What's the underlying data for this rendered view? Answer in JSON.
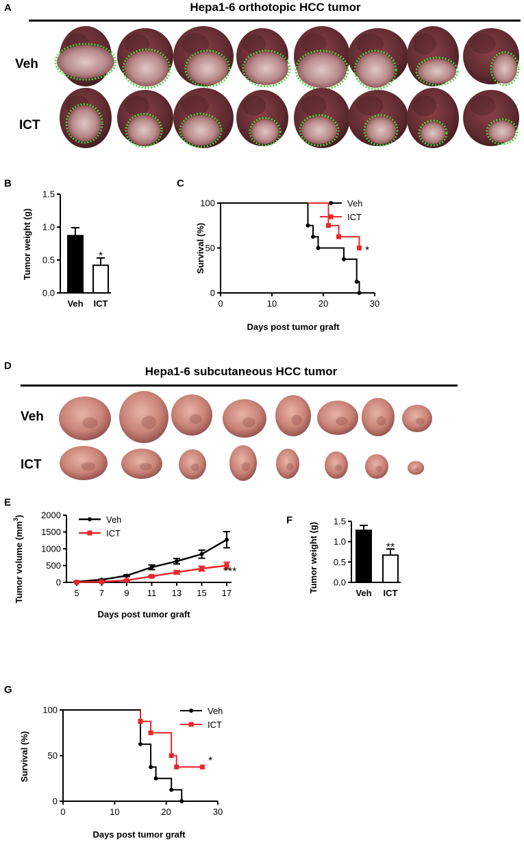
{
  "figure": {
    "panels": {
      "A": "A",
      "B": "B",
      "C": "C",
      "D": "D",
      "E": "E",
      "F": "F",
      "G": "G"
    },
    "panel_a": {
      "title": "Hepa1-6 orthotopic HCC tumor",
      "row1": "Veh",
      "row2": "ICT"
    },
    "panel_d": {
      "title": "Hepa1-6 subcutaneous HCC tumor",
      "row1": "Veh",
      "row2": "ICT"
    },
    "colors": {
      "veh": "#000000",
      "ict": "#e8262b",
      "outline": "#4bd43a",
      "liver": "#6a2f33",
      "liver_dark": "#4a1f24",
      "tumor": "#c8a8a6",
      "sc_tumor": "#c98b83",
      "sc_tumor_dark": "#8a4a48"
    }
  },
  "chart_data": [
    {
      "id": "B",
      "type": "bar",
      "title": "",
      "xlabel": "",
      "ylabel": "Tumor weight (g)",
      "categories": [
        "Veh",
        "ICT"
      ],
      "values": [
        0.87,
        0.42
      ],
      "errors": [
        0.12,
        0.11
      ],
      "fills": [
        "#000000",
        "#ffffff"
      ],
      "ylim": [
        0,
        1.5
      ],
      "yticks": [
        "0.0",
        "0.5",
        "1.0",
        "1.5"
      ],
      "annotations": [
        "*"
      ]
    },
    {
      "id": "C",
      "type": "line",
      "title": "",
      "xlabel": "Days post tumor graft",
      "ylabel": "Survival (%)",
      "xlim": [
        0,
        30
      ],
      "ylim": [
        0,
        100
      ],
      "xticks": [
        "0",
        "10",
        "20",
        "30"
      ],
      "yticks": [
        "0",
        "50",
        "100"
      ],
      "legend": [
        "Veh",
        "ICT"
      ],
      "legend_position": "top-right",
      "series": [
        {
          "name": "Veh",
          "color": "#000000",
          "step": [
            [
              0,
              100
            ],
            [
              17,
              100
            ],
            [
              17,
              75
            ],
            [
              18,
              75
            ],
            [
              18,
              62.5
            ],
            [
              19,
              62.5
            ],
            [
              19,
              50
            ],
            [
              24,
              50
            ],
            [
              24,
              37.5
            ],
            [
              26.5,
              37.5
            ],
            [
              26.5,
              12.5
            ],
            [
              27,
              12.5
            ],
            [
              27,
              0
            ]
          ],
          "markers": [
            [
              17,
              75
            ],
            [
              18,
              62.5
            ],
            [
              19,
              50
            ],
            [
              24,
              37.5
            ],
            [
              26.5,
              12.5
            ],
            [
              27,
              0
            ]
          ]
        },
        {
          "name": "ICT",
          "color": "#e8262b",
          "step": [
            [
              17,
              100
            ],
            [
              21,
              100
            ],
            [
              21,
              75
            ],
            [
              23,
              75
            ],
            [
              23,
              62.5
            ],
            [
              27,
              62.5
            ],
            [
              27,
              50
            ]
          ],
          "markers": [
            [
              21,
              75
            ],
            [
              23,
              62.5
            ],
            [
              27,
              50
            ]
          ]
        }
      ],
      "annotations": [
        "*"
      ]
    },
    {
      "id": "E",
      "type": "line",
      "title": "",
      "xlabel": "Days post tumor graft",
      "ylabel": "Tumor volume (mm",
      "ylabel_sup": "3",
      "ylabel_end": ")",
      "x": [
        5,
        7,
        9,
        11,
        13,
        15,
        17
      ],
      "xticks": [
        "5",
        "7",
        "9",
        "11",
        "13",
        "15",
        "17"
      ],
      "ylim": [
        0,
        2000
      ],
      "yticks": [
        "0",
        "500",
        "1000",
        "1500",
        "2000"
      ],
      "legend": [
        "Veh",
        "ICT"
      ],
      "legend_position": "top-left",
      "series": [
        {
          "name": "Veh",
          "color": "#000000",
          "values": [
            20,
            80,
            200,
            450,
            630,
            840,
            1270
          ],
          "errors": [
            5,
            15,
            25,
            70,
            80,
            120,
            240
          ]
        },
        {
          "name": "ICT",
          "color": "#e8262b",
          "values": [
            5,
            20,
            60,
            180,
            300,
            410,
            500
          ],
          "errors": [
            3,
            8,
            15,
            30,
            50,
            70,
            100
          ]
        }
      ],
      "annotations": [
        "***"
      ]
    },
    {
      "id": "F",
      "type": "bar",
      "title": "",
      "xlabel": "",
      "ylabel": "Tumor weight (g)",
      "categories": [
        "Veh",
        "ICT"
      ],
      "values": [
        1.28,
        0.67
      ],
      "errors": [
        0.12,
        0.15
      ],
      "fills": [
        "#000000",
        "#ffffff"
      ],
      "ylim": [
        0,
        1.5
      ],
      "yticks": [
        "0.0",
        "0.5",
        "1.0",
        "1.5"
      ],
      "annotations": [
        "**"
      ]
    },
    {
      "id": "G",
      "type": "line",
      "title": "",
      "xlabel": "Days post tumor graft",
      "ylabel": "Survival (%)",
      "xlim": [
        0,
        30
      ],
      "ylim": [
        0,
        100
      ],
      "xticks": [
        "0",
        "10",
        "20",
        "30"
      ],
      "yticks": [
        "0",
        "50",
        "100"
      ],
      "legend": [
        "Veh",
        "ICT"
      ],
      "legend_position": "top-right",
      "series": [
        {
          "name": "Veh",
          "color": "#000000",
          "step": [
            [
              0,
              100
            ],
            [
              15,
              100
            ],
            [
              15,
              62.5
            ],
            [
              17,
              62.5
            ],
            [
              17,
              37.5
            ],
            [
              18,
              37.5
            ],
            [
              18,
              25
            ],
            [
              21,
              25
            ],
            [
              21,
              12.5
            ],
            [
              23,
              12.5
            ],
            [
              23,
              0
            ]
          ],
          "markers": [
            [
              15,
              62.5
            ],
            [
              17,
              37.5
            ],
            [
              18,
              25
            ],
            [
              21,
              12.5
            ],
            [
              23,
              0
            ]
          ]
        },
        {
          "name": "ICT",
          "color": "#e8262b",
          "step": [
            [
              15,
              100
            ],
            [
              15,
              87.5
            ],
            [
              17,
              87.5
            ],
            [
              17,
              75
            ],
            [
              21,
              75
            ],
            [
              21,
              50
            ],
            [
              22,
              50
            ],
            [
              22,
              37.5
            ],
            [
              27,
              37.5
            ]
          ],
          "markers": [
            [
              15,
              87.5
            ],
            [
              17,
              75
            ],
            [
              21,
              50
            ],
            [
              22,
              37.5
            ],
            [
              27,
              37.5
            ]
          ]
        }
      ],
      "annotations": [
        "*"
      ]
    }
  ]
}
